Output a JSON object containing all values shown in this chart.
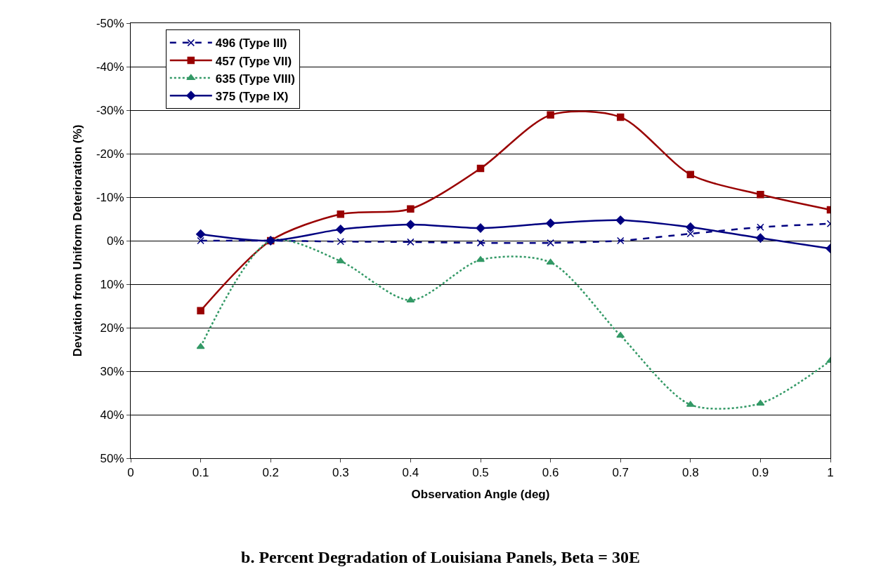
{
  "chart_data": {
    "type": "line",
    "title": "b. Percent Degradation of Louisiana Panels, Beta = 30E",
    "xlabel": "Observation Angle (deg)",
    "ylabel": "Deviation from Uniform Deterioration (%)",
    "x": [
      0.1,
      0.2,
      0.3,
      0.4,
      0.5,
      0.6,
      0.7,
      0.8,
      0.9,
      1
    ],
    "series": [
      {
        "name": "496 (Type III)",
        "color": "#000080",
        "marker": "cross",
        "line_style": "dashed",
        "values": [
          0,
          0,
          0.2,
          0.3,
          0.5,
          0.5,
          0,
          -1.6,
          -3.1,
          -3.9
        ]
      },
      {
        "name": "457 (Type VII)",
        "color": "#990000",
        "marker": "square",
        "line_style": "solid",
        "values": [
          16.1,
          0,
          -6.1,
          -7.3,
          -16.6,
          -28.9,
          -28.4,
          -15.2,
          -10.6,
          -7.1
        ]
      },
      {
        "name": "635 (Type VIII)",
        "color": "#339966",
        "marker": "triangle",
        "line_style": "dotted",
        "values": [
          24.4,
          0,
          4.7,
          13.7,
          4.4,
          5.0,
          21.8,
          37.7,
          37.4,
          27.6
        ]
      },
      {
        "name": "375 (Type IX)",
        "color": "#000080",
        "marker": "diamond",
        "line_style": "solid",
        "values": [
          -1.5,
          0,
          -2.6,
          -3.7,
          -2.9,
          -4.0,
          -4.7,
          -3.1,
          -0.6,
          1.8
        ]
      }
    ],
    "xlim": [
      0,
      1
    ],
    "xticks": [
      0,
      0.1,
      0.2,
      0.3,
      0.4,
      0.5,
      0.6,
      0.7,
      0.8,
      0.9,
      1
    ],
    "ylim": [
      50,
      -50
    ],
    "yticks": [
      {
        "value": -50,
        "label": "-50%"
      },
      {
        "value": -40,
        "label": "-40%"
      },
      {
        "value": -30,
        "label": "-30%"
      },
      {
        "value": -20,
        "label": "-20%"
      },
      {
        "value": -10,
        "label": "-10%"
      },
      {
        "value": 0,
        "label": "0%"
      },
      {
        "value": 10,
        "label": "10%"
      },
      {
        "value": 20,
        "label": "20%"
      },
      {
        "value": 30,
        "label": "30%"
      },
      {
        "value": 40,
        "label": "40%"
      },
      {
        "value": 50,
        "label": "50%"
      }
    ],
    "grid": "y",
    "legend": "top left"
  }
}
